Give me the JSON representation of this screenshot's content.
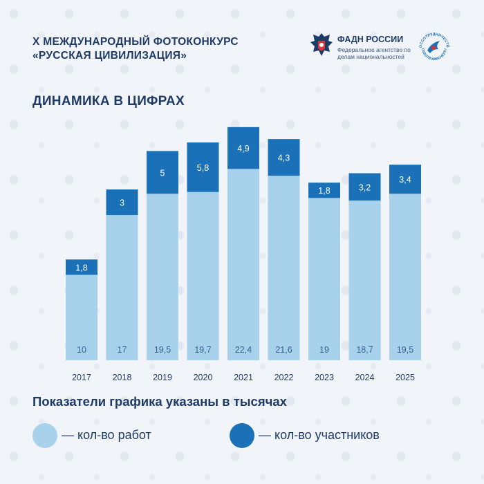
{
  "header": {
    "title_line1": "X МЕЖДУНАРОДНЫЙ ФОТОКОНКУРС",
    "title_line2": "«РУССКАЯ ЦИВИЛИЗАЦИЯ»"
  },
  "logos": {
    "fadn_name": "ФАДН РОССИИ",
    "fadn_subtitle": "Федеральное агентство по делам национальностей",
    "rossotrud_arc_top": "РОССОТРУДНИЧЕСТВО",
    "rossotrud_arc_bottom": "ROSSOTRUDNICHESTVO"
  },
  "section_title": "ДИНАМИКА В ЦИФРАХ",
  "footnote": "Показатели графика указаны в тысячах",
  "legend": [
    {
      "label": "— кол-во работ",
      "color": "#a8d1ec"
    },
    {
      "label": "— кол-во участников",
      "color": "#1a71b7"
    }
  ],
  "colors": {
    "works": "#a8d1ec",
    "participants": "#1a71b7",
    "text_dark": "#1e3a66",
    "background": "#f1f4f9"
  },
  "chart_data": {
    "type": "bar",
    "stacked": true,
    "categories": [
      "2017",
      "2018",
      "2019",
      "2020",
      "2021",
      "2022",
      "2023",
      "2024",
      "2025"
    ],
    "series": [
      {
        "name": "— кол-во работ",
        "values": [
          10,
          17,
          19.5,
          19.7,
          22.4,
          21.6,
          19,
          18.7,
          19.5
        ],
        "labels": [
          "10",
          "17",
          "19,5",
          "19,7",
          "22,4",
          "21,6",
          "19",
          "18,7",
          "19,5"
        ]
      },
      {
        "name": "— кол-во участников",
        "values": [
          1.8,
          3,
          5,
          5.8,
          4.9,
          4.3,
          1.8,
          3.2,
          3.4
        ],
        "labels": [
          "1,8",
          "3",
          "5",
          "5,8",
          "4,9",
          "4,3",
          "1,8",
          "3,2",
          "3,4"
        ]
      }
    ],
    "grid": false,
    "legend_position": "bottom"
  }
}
